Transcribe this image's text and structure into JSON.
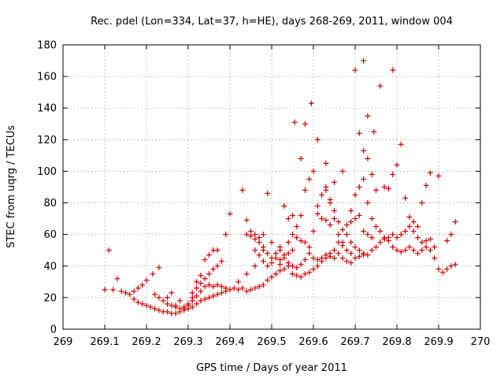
{
  "chart_data": {
    "type": "scatter",
    "title": "Rec. pdel (Lon=334, Lat=37, h=HE), days 268-269, 2011, window 004",
    "xlabel": "GPS time / Days of year 2011",
    "ylabel": "STEC from uqrg / TECUs",
    "xlim": [
      269,
      270
    ],
    "ylim": [
      0,
      180
    ],
    "xticks": [
      269,
      269.1,
      269.2,
      269.3,
      269.4,
      269.5,
      269.6,
      269.7,
      269.8,
      269.9,
      270
    ],
    "xtick_labels": [
      "269",
      "269.1",
      "269.2",
      "269.3",
      "269.4",
      "269.5",
      "269.6",
      "269.7",
      "269.8",
      "269.9",
      "270"
    ],
    "yticks": [
      0,
      20,
      40,
      60,
      80,
      100,
      120,
      140,
      160,
      180
    ],
    "ytick_labels": [
      "0",
      "20",
      "40",
      "60",
      "80",
      "100",
      "120",
      "140",
      "160",
      "180"
    ],
    "grid": true,
    "marker": "plus",
    "color": "#cc0000",
    "points": [
      [
        269.1,
        25
      ],
      [
        269.11,
        50
      ],
      [
        269.12,
        25
      ],
      [
        269.13,
        32
      ],
      [
        269.14,
        24
      ],
      [
        269.15,
        23
      ],
      [
        269.16,
        22
      ],
      [
        269.17,
        24
      ],
      [
        269.18,
        26
      ],
      [
        269.19,
        28
      ],
      [
        269.2,
        31
      ],
      [
        269.215,
        35
      ],
      [
        269.23,
        39
      ],
      [
        269.17,
        19
      ],
      [
        269.18,
        17
      ],
      [
        269.19,
        16
      ],
      [
        269.2,
        15
      ],
      [
        269.21,
        14
      ],
      [
        269.22,
        13
      ],
      [
        269.23,
        12
      ],
      [
        269.24,
        11
      ],
      [
        269.25,
        11
      ],
      [
        269.26,
        10
      ],
      [
        269.27,
        10
      ],
      [
        269.28,
        11
      ],
      [
        269.29,
        12
      ],
      [
        269.3,
        13
      ],
      [
        269.31,
        14
      ],
      [
        269.32,
        16
      ],
      [
        269.33,
        18
      ],
      [
        269.34,
        19
      ],
      [
        269.35,
        20
      ],
      [
        269.36,
        21
      ],
      [
        269.37,
        22
      ],
      [
        269.38,
        23
      ],
      [
        269.39,
        24
      ],
      [
        269.4,
        25
      ],
      [
        269.41,
        26
      ],
      [
        269.42,
        25
      ],
      [
        269.43,
        26
      ],
      [
        269.44,
        24
      ],
      [
        269.45,
        25
      ],
      [
        269.46,
        26
      ],
      [
        269.47,
        27
      ],
      [
        269.48,
        28
      ],
      [
        269.49,
        31
      ],
      [
        269.5,
        33
      ],
      [
        269.51,
        35
      ],
      [
        269.52,
        37
      ],
      [
        269.53,
        38
      ],
      [
        269.54,
        40
      ],
      [
        269.55,
        35
      ],
      [
        269.56,
        34
      ],
      [
        269.57,
        33
      ],
      [
        269.58,
        35
      ],
      [
        269.59,
        36
      ],
      [
        269.6,
        38
      ],
      [
        269.61,
        40
      ],
      [
        269.62,
        43
      ],
      [
        269.63,
        45
      ],
      [
        269.64,
        48
      ],
      [
        269.65,
        50
      ],
      [
        269.22,
        22
      ],
      [
        269.23,
        20
      ],
      [
        269.24,
        18
      ],
      [
        269.25,
        16
      ],
      [
        269.26,
        15
      ],
      [
        269.27,
        14
      ],
      [
        269.28,
        13
      ],
      [
        269.29,
        14
      ],
      [
        269.3,
        16
      ],
      [
        269.31,
        18
      ],
      [
        269.32,
        21
      ],
      [
        269.33,
        24
      ],
      [
        269.34,
        27
      ],
      [
        269.35,
        28
      ],
      [
        269.36,
        27
      ],
      [
        269.37,
        28
      ],
      [
        269.38,
        27
      ],
      [
        269.39,
        26
      ],
      [
        269.25,
        20
      ],
      [
        269.26,
        23
      ],
      [
        269.27,
        15
      ],
      [
        269.28,
        18
      ],
      [
        269.29,
        13
      ],
      [
        269.3,
        15
      ],
      [
        269.31,
        20
      ],
      [
        269.32,
        26
      ],
      [
        269.33,
        29
      ],
      [
        269.34,
        32
      ],
      [
        269.35,
        35
      ],
      [
        269.36,
        38
      ],
      [
        269.37,
        40
      ],
      [
        269.38,
        43
      ],
      [
        269.31,
        23
      ],
      [
        269.32,
        30
      ],
      [
        269.33,
        34
      ],
      [
        269.34,
        44
      ],
      [
        269.35,
        47
      ],
      [
        269.36,
        50
      ],
      [
        269.37,
        50
      ],
      [
        269.39,
        60
      ],
      [
        269.4,
        73
      ],
      [
        269.43,
        88
      ],
      [
        269.44,
        69
      ],
      [
        269.45,
        62
      ],
      [
        269.46,
        60
      ],
      [
        269.47,
        58
      ],
      [
        269.48,
        60
      ],
      [
        269.49,
        86
      ],
      [
        269.44,
        60
      ],
      [
        269.45,
        59
      ],
      [
        269.46,
        57
      ],
      [
        269.47,
        55
      ],
      [
        269.48,
        50
      ],
      [
        269.49,
        48
      ],
      [
        269.5,
        45
      ],
      [
        269.51,
        48
      ],
      [
        269.52,
        52
      ],
      [
        269.53,
        78
      ],
      [
        269.54,
        70
      ],
      [
        269.55,
        72
      ],
      [
        269.46,
        50
      ],
      [
        269.47,
        47
      ],
      [
        269.48,
        43
      ],
      [
        269.49,
        40
      ],
      [
        269.5,
        42
      ],
      [
        269.51,
        45
      ],
      [
        269.52,
        44
      ],
      [
        269.53,
        47
      ],
      [
        269.54,
        42
      ],
      [
        269.55,
        40
      ],
      [
        269.56,
        39
      ],
      [
        269.57,
        41
      ],
      [
        269.58,
        44
      ],
      [
        269.42,
        30
      ],
      [
        269.44,
        35
      ],
      [
        269.46,
        40
      ],
      [
        269.48,
        52
      ],
      [
        269.5,
        55
      ],
      [
        269.52,
        50
      ],
      [
        269.54,
        55
      ],
      [
        269.55,
        60
      ],
      [
        269.56,
        65
      ],
      [
        269.57,
        72
      ],
      [
        269.58,
        88
      ],
      [
        269.59,
        95
      ],
      [
        269.6,
        100
      ],
      [
        269.555,
        131
      ],
      [
        269.57,
        108
      ],
      [
        269.58,
        130
      ],
      [
        269.595,
        143
      ],
      [
        269.61,
        120
      ],
      [
        269.63,
        105
      ],
      [
        269.6,
        62
      ],
      [
        269.61,
        78
      ],
      [
        269.62,
        85
      ],
      [
        269.63,
        90
      ],
      [
        269.64,
        80
      ],
      [
        269.65,
        75
      ],
      [
        269.66,
        68
      ],
      [
        269.67,
        63
      ],
      [
        269.68,
        60
      ],
      [
        269.69,
        55
      ],
      [
        269.7,
        52
      ],
      [
        269.71,
        50
      ],
      [
        269.72,
        48
      ],
      [
        269.59,
        48
      ],
      [
        269.6,
        45
      ],
      [
        269.61,
        44
      ],
      [
        269.62,
        45
      ],
      [
        269.63,
        47
      ],
      [
        269.64,
        46
      ],
      [
        269.65,
        45
      ],
      [
        269.66,
        48
      ],
      [
        269.67,
        45
      ],
      [
        269.68,
        43
      ],
      [
        269.69,
        42
      ],
      [
        269.7,
        45
      ],
      [
        269.71,
        46
      ],
      [
        269.72,
        47
      ],
      [
        269.73,
        47
      ],
      [
        269.74,
        50
      ],
      [
        269.75,
        52
      ],
      [
        269.76,
        55
      ],
      [
        269.77,
        57
      ],
      [
        269.78,
        58
      ],
      [
        269.79,
        60
      ],
      [
        269.8,
        58
      ],
      [
        269.81,
        60
      ],
      [
        269.82,
        62
      ],
      [
        269.83,
        65
      ],
      [
        269.84,
        62
      ],
      [
        269.85,
        58
      ],
      [
        269.86,
        55
      ],
      [
        269.87,
        52
      ],
      [
        269.88,
        50
      ],
      [
        269.89,
        45
      ],
      [
        269.9,
        38
      ],
      [
        269.91,
        36
      ],
      [
        269.92,
        38
      ],
      [
        269.93,
        40
      ],
      [
        269.94,
        41
      ],
      [
        269.92,
        56
      ],
      [
        269.93,
        60
      ],
      [
        269.94,
        68
      ],
      [
        269.63,
        88
      ],
      [
        269.64,
        82
      ],
      [
        269.65,
        70
      ],
      [
        269.66,
        60
      ],
      [
        269.67,
        55
      ],
      [
        269.68,
        50
      ],
      [
        269.69,
        48
      ],
      [
        269.65,
        93
      ],
      [
        269.67,
        100
      ],
      [
        269.69,
        75
      ],
      [
        269.7,
        85
      ],
      [
        269.71,
        90
      ],
      [
        269.72,
        95
      ],
      [
        269.73,
        80
      ],
      [
        269.74,
        70
      ],
      [
        269.75,
        65
      ],
      [
        269.76,
        62
      ],
      [
        269.77,
        58
      ],
      [
        269.78,
        56
      ],
      [
        269.79,
        52
      ],
      [
        269.8,
        50
      ],
      [
        269.7,
        164
      ],
      [
        269.72,
        170
      ],
      [
        269.73,
        135
      ],
      [
        269.745,
        125
      ],
      [
        269.76,
        154
      ],
      [
        269.79,
        164
      ],
      [
        269.71,
        124
      ],
      [
        269.72,
        113
      ],
      [
        269.73,
        108
      ],
      [
        269.74,
        98
      ],
      [
        269.75,
        88
      ],
      [
        269.77,
        90
      ],
      [
        269.78,
        89
      ],
      [
        269.79,
        98
      ],
      [
        269.8,
        104
      ],
      [
        269.81,
        117
      ],
      [
        269.82,
        83
      ],
      [
        269.83,
        71
      ],
      [
        269.84,
        68
      ],
      [
        269.85,
        65
      ],
      [
        269.86,
        80
      ],
      [
        269.87,
        91
      ],
      [
        269.88,
        99
      ],
      [
        269.9,
        97
      ],
      [
        269.89,
        52
      ],
      [
        269.88,
        57
      ],
      [
        269.87,
        56
      ],
      [
        269.86,
        50
      ],
      [
        269.85,
        48
      ],
      [
        269.84,
        50
      ],
      [
        269.83,
        52
      ],
      [
        269.82,
        50
      ],
      [
        269.81,
        49
      ],
      [
        269.61,
        73
      ],
      [
        269.62,
        70
      ],
      [
        269.63,
        69
      ],
      [
        269.64,
        66
      ],
      [
        269.7,
        70
      ],
      [
        269.71,
        72
      ],
      [
        269.72,
        62
      ],
      [
        269.73,
        60
      ],
      [
        269.74,
        58
      ],
      [
        269.68,
        66
      ],
      [
        269.69,
        68
      ],
      [
        269.66,
        55
      ],
      [
        269.67,
        53
      ],
      [
        269.56,
        58
      ],
      [
        269.57,
        56
      ],
      [
        269.58,
        55
      ],
      [
        269.59,
        52
      ],
      [
        269.55,
        50
      ],
      [
        269.54,
        48
      ],
      [
        269.53,
        45
      ],
      [
        269.52,
        41
      ]
    ]
  }
}
